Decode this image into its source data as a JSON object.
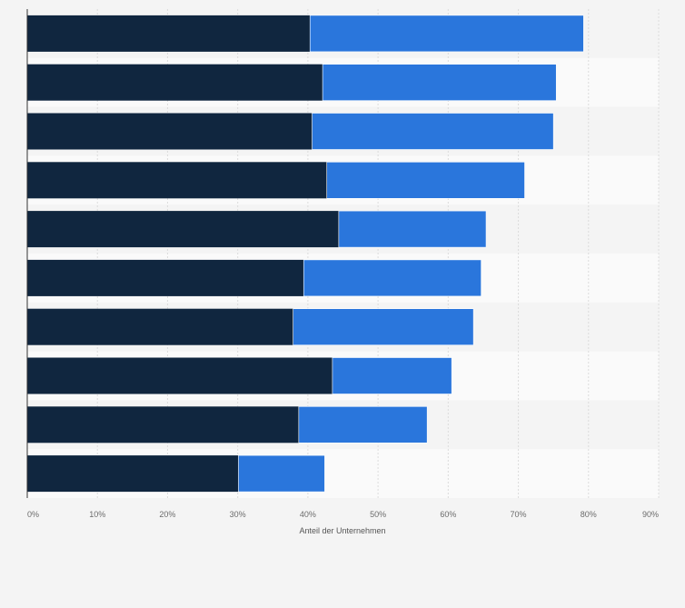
{
  "chart_data": {
    "type": "bar",
    "orientation": "horizontal",
    "stacked": true,
    "categories": [
      "",
      "",
      "",
      "",
      "",
      "",
      "",
      "",
      "",
      ""
    ],
    "series": [
      {
        "values": [
          40.3,
          42.1,
          40.6,
          42.7,
          44.4,
          39.4,
          37.9,
          43.5,
          38.7,
          30.1
        ]
      },
      {
        "values": [
          39.0,
          33.3,
          34.4,
          28.2,
          21.0,
          25.3,
          25.7,
          17.0,
          18.3,
          12.3
        ]
      }
    ],
    "xlabel": "Anteil der Unternehmen",
    "xlim": [
      0,
      90
    ],
    "xticks": [
      "0%",
      "10%",
      "20%",
      "30%",
      "40%",
      "50%",
      "60%",
      "70%",
      "80%",
      "90%"
    ],
    "grid": true,
    "colors": [
      "#10263f",
      "#2a76dc"
    ],
    "band_colors": [
      "#f4f4f4",
      "#fafafa"
    ]
  }
}
